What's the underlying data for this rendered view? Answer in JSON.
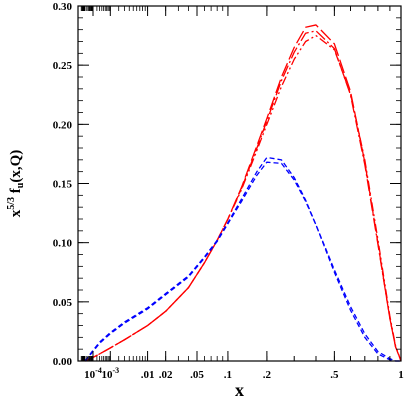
{
  "chart_data": {
    "type": "line",
    "title": "",
    "xlabel": "x",
    "ylabel_parts": {
      "base": "x",
      "exp": "5/3",
      "rest": " f",
      "sub": "u",
      "args": "(x,Q)"
    },
    "x_scale": "x^(1/3)",
    "xlim": [
      0,
      1
    ],
    "ylim": [
      0,
      0.3
    ],
    "grid": false,
    "x_ticks": [
      {
        "value": 0.0001,
        "mant": "10",
        "exp": "-4"
      },
      {
        "value": 0.001,
        "mant": "10",
        "exp": "-3"
      },
      {
        "value": 0.01,
        "text": ".01"
      },
      {
        "value": 0.02,
        "text": ".02"
      },
      {
        "value": 0.05,
        "text": ".05"
      },
      {
        "value": 0.1,
        "text": ".1"
      },
      {
        "value": 0.2,
        "text": ".2"
      },
      {
        "value": 0.5,
        "text": ".5"
      },
      {
        "value": 1,
        "text": "1"
      }
    ],
    "y_ticks": [
      {
        "value": 0.0,
        "text": "0.00"
      },
      {
        "value": 0.05,
        "text": "0.05"
      },
      {
        "value": 0.1,
        "text": "0.10"
      },
      {
        "value": 0.15,
        "text": "0.15"
      },
      {
        "value": 0.2,
        "text": "0.20"
      },
      {
        "value": 0.25,
        "text": "0.25"
      },
      {
        "value": 0.3,
        "text": "0.30"
      }
    ],
    "x": [
      1e-05,
      0.0001,
      0.0003,
      0.001,
      0.003,
      0.01,
      0.02,
      0.04,
      0.06,
      0.08,
      0.1,
      0.13,
      0.17,
      0.2,
      0.25,
      0.3,
      0.35,
      0.4,
      0.5,
      0.6,
      0.7,
      0.8,
      0.9,
      0.95,
      1.0
    ],
    "series": [
      {
        "color": "#ff0000",
        "dash": "14,4",
        "values": [
          0.0,
          0.003,
          0.006,
          0.011,
          0.018,
          0.03,
          0.042,
          0.062,
          0.083,
          0.102,
          0.12,
          0.147,
          0.182,
          0.205,
          0.24,
          0.265,
          0.282,
          0.284,
          0.268,
          0.228,
          0.168,
          0.1,
          0.036,
          0.012,
          0.0
        ]
      },
      {
        "color": "#ff0000",
        "dash": "12,3,2,3",
        "values": [
          0.0,
          0.003,
          0.006,
          0.011,
          0.018,
          0.03,
          0.042,
          0.062,
          0.083,
          0.102,
          0.12,
          0.146,
          0.18,
          0.203,
          0.237,
          0.261,
          0.277,
          0.279,
          0.264,
          0.225,
          0.166,
          0.099,
          0.036,
          0.012,
          0.0
        ]
      },
      {
        "color": "#ff0000",
        "dash": "9,3,2,3,2,3",
        "values": [
          0.0,
          0.003,
          0.006,
          0.011,
          0.018,
          0.03,
          0.042,
          0.062,
          0.083,
          0.102,
          0.12,
          0.145,
          0.178,
          0.2,
          0.232,
          0.255,
          0.27,
          0.275,
          0.263,
          0.226,
          0.17,
          0.103,
          0.038,
          0.013,
          0.0
        ]
      },
      {
        "color": "#0000ff",
        "dash": "5,3",
        "values": [
          0.0,
          0.009,
          0.016,
          0.024,
          0.033,
          0.045,
          0.057,
          0.072,
          0.088,
          0.102,
          0.117,
          0.137,
          0.16,
          0.172,
          0.17,
          0.155,
          0.136,
          0.115,
          0.075,
          0.043,
          0.02,
          0.006,
          0.001,
          0.0,
          0.0
        ]
      },
      {
        "color": "#0000ff",
        "dash": "5,3",
        "values": [
          0.0,
          0.008,
          0.015,
          0.023,
          0.032,
          0.044,
          0.056,
          0.071,
          0.087,
          0.101,
          0.116,
          0.135,
          0.157,
          0.168,
          0.167,
          0.153,
          0.135,
          0.115,
          0.077,
          0.046,
          0.023,
          0.008,
          0.002,
          0.0,
          0.0
        ]
      }
    ]
  }
}
